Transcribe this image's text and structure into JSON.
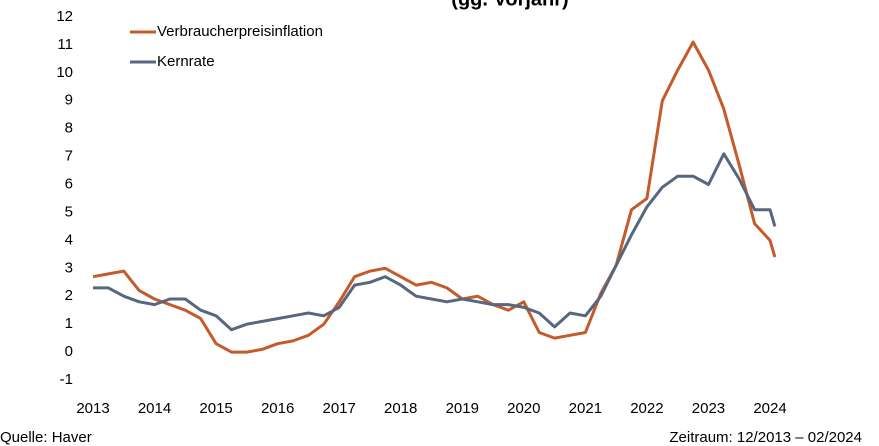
{
  "chart_data": {
    "type": "line",
    "title": "(gg. Vorjahr)",
    "x": [
      2013,
      2013.25,
      2013.5,
      2013.75,
      2014,
      2014.25,
      2014.5,
      2014.75,
      2015,
      2015.25,
      2015.5,
      2015.75,
      2016,
      2016.25,
      2016.5,
      2016.75,
      2017,
      2017.25,
      2017.5,
      2017.75,
      2018,
      2018.25,
      2018.5,
      2018.75,
      2019,
      2019.25,
      2019.5,
      2019.75,
      2020,
      2020.25,
      2020.5,
      2020.75,
      2021,
      2021.25,
      2021.5,
      2021.75,
      2022,
      2022.25,
      2022.5,
      2022.75,
      2023,
      2023.25,
      2023.5,
      2023.75,
      2024,
      2024.08
    ],
    "series": [
      {
        "name": "Verbraucherpreisinflation",
        "color": "#c55a2b",
        "values": [
          2.7,
          2.8,
          2.9,
          2.2,
          1.9,
          1.7,
          1.5,
          1.2,
          0.3,
          0.0,
          0.0,
          0.1,
          0.3,
          0.4,
          0.6,
          1.0,
          1.8,
          2.7,
          2.9,
          3.0,
          2.7,
          2.4,
          2.5,
          2.3,
          1.9,
          2.0,
          1.7,
          1.5,
          1.8,
          0.7,
          0.5,
          0.6,
          0.7,
          2.1,
          3.1,
          5.1,
          5.5,
          9.0,
          10.1,
          11.1,
          10.1,
          8.7,
          6.7,
          4.6,
          4.0,
          3.4
        ]
      },
      {
        "name": "Kernrate",
        "color": "#56677f",
        "values": [
          2.3,
          2.3,
          2.0,
          1.8,
          1.7,
          1.9,
          1.9,
          1.5,
          1.3,
          0.8,
          1.0,
          1.1,
          1.2,
          1.3,
          1.4,
          1.3,
          1.6,
          2.4,
          2.5,
          2.7,
          2.4,
          2.0,
          1.9,
          1.8,
          1.9,
          1.8,
          1.7,
          1.7,
          1.6,
          1.4,
          0.9,
          1.4,
          1.3,
          2.0,
          3.1,
          4.2,
          5.2,
          5.9,
          6.3,
          6.3,
          6.0,
          7.1,
          6.2,
          5.1,
          5.1,
          4.5
        ]
      }
    ],
    "xlim": [
      2013,
      2024.2
    ],
    "xticks": [
      2013,
      2014,
      2015,
      2016,
      2017,
      2018,
      2019,
      2020,
      2021,
      2022,
      2023,
      2024
    ],
    "ylim": [
      -1,
      12
    ],
    "yticks": [
      -1,
      0,
      1,
      2,
      3,
      4,
      5,
      6,
      7,
      8,
      9,
      10,
      11,
      12
    ],
    "source": "Quelle: Haver",
    "period": "Zeitraum: 12/2013 – 02/2024",
    "legend": "upper left"
  }
}
